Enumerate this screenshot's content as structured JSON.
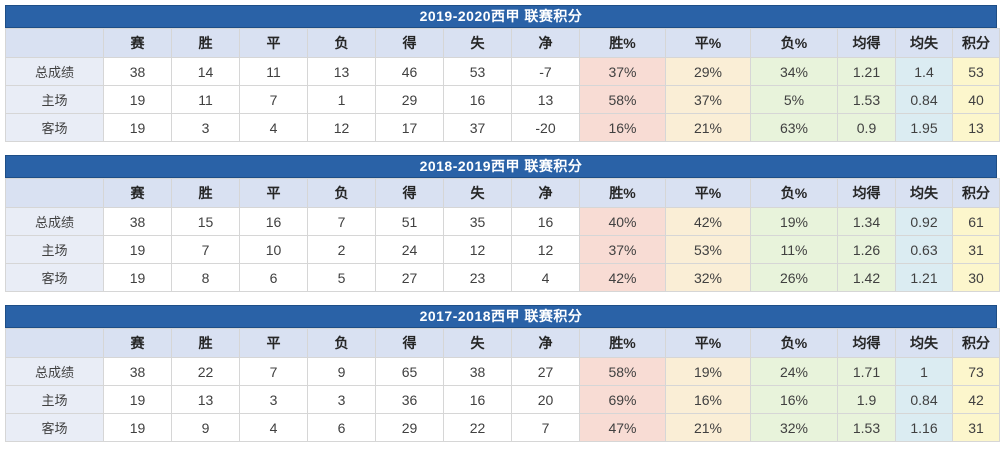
{
  "colors": {
    "title_bar_bg": "#2A62A7",
    "title_bar_border": "#1E4E86",
    "title_text": "#FFFFFF",
    "header_bg": "#D9E1F2",
    "header_text": "#262626",
    "label_col_bg": "#E9EDF6",
    "body_text": "#404040",
    "cell_border": "#D6D6D6",
    "win_pct_bg": "#F8DCD4",
    "draw_pct_bg": "#FAEED6",
    "loss_pct_bg": "#E8F3DB",
    "avg_for_bg": "#E8F3DB",
    "avg_against_bg": "#DBECF2",
    "points_bg": "#FCF6CC"
  },
  "chart_data": [
    {
      "type": "table",
      "title": "2019-2020西甲 联赛积分",
      "columns": [
        "",
        "赛",
        "胜",
        "平",
        "负",
        "得",
        "失",
        "净",
        "胜%",
        "平%",
        "负%",
        "均得",
        "均失",
        "积分"
      ],
      "rows": [
        {
          "label": "总成绩",
          "values": [
            "38",
            "14",
            "11",
            "13",
            "46",
            "53",
            "-7",
            "37%",
            "29%",
            "34%",
            "1.21",
            "1.4",
            "53"
          ]
        },
        {
          "label": "主场",
          "values": [
            "19",
            "11",
            "7",
            "1",
            "29",
            "16",
            "13",
            "58%",
            "37%",
            "5%",
            "1.53",
            "0.84",
            "40"
          ]
        },
        {
          "label": "客场",
          "values": [
            "19",
            "3",
            "4",
            "12",
            "17",
            "37",
            "-20",
            "16%",
            "21%",
            "63%",
            "0.9",
            "1.95",
            "13"
          ]
        }
      ]
    },
    {
      "type": "table",
      "title": "2018-2019西甲 联赛积分",
      "columns": [
        "",
        "赛",
        "胜",
        "平",
        "负",
        "得",
        "失",
        "净",
        "胜%",
        "平%",
        "负%",
        "均得",
        "均失",
        "积分"
      ],
      "rows": [
        {
          "label": "总成绩",
          "values": [
            "38",
            "15",
            "16",
            "7",
            "51",
            "35",
            "16",
            "40%",
            "42%",
            "19%",
            "1.34",
            "0.92",
            "61"
          ]
        },
        {
          "label": "主场",
          "values": [
            "19",
            "7",
            "10",
            "2",
            "24",
            "12",
            "12",
            "37%",
            "53%",
            "11%",
            "1.26",
            "0.63",
            "31"
          ]
        },
        {
          "label": "客场",
          "values": [
            "19",
            "8",
            "6",
            "5",
            "27",
            "23",
            "4",
            "42%",
            "32%",
            "26%",
            "1.42",
            "1.21",
            "30"
          ]
        }
      ]
    },
    {
      "type": "table",
      "title": "2017-2018西甲 联赛积分",
      "columns": [
        "",
        "赛",
        "胜",
        "平",
        "负",
        "得",
        "失",
        "净",
        "胜%",
        "平%",
        "负%",
        "均得",
        "均失",
        "积分"
      ],
      "rows": [
        {
          "label": "总成绩",
          "values": [
            "38",
            "22",
            "7",
            "9",
            "65",
            "38",
            "27",
            "58%",
            "19%",
            "24%",
            "1.71",
            "1",
            "73"
          ]
        },
        {
          "label": "主场",
          "values": [
            "19",
            "13",
            "3",
            "3",
            "36",
            "16",
            "20",
            "69%",
            "16%",
            "16%",
            "1.9",
            "0.84",
            "42"
          ]
        },
        {
          "label": "客场",
          "values": [
            "19",
            "9",
            "4",
            "6",
            "29",
            "22",
            "7",
            "47%",
            "21%",
            "32%",
            "1.53",
            "1.16",
            "31"
          ]
        }
      ]
    }
  ]
}
